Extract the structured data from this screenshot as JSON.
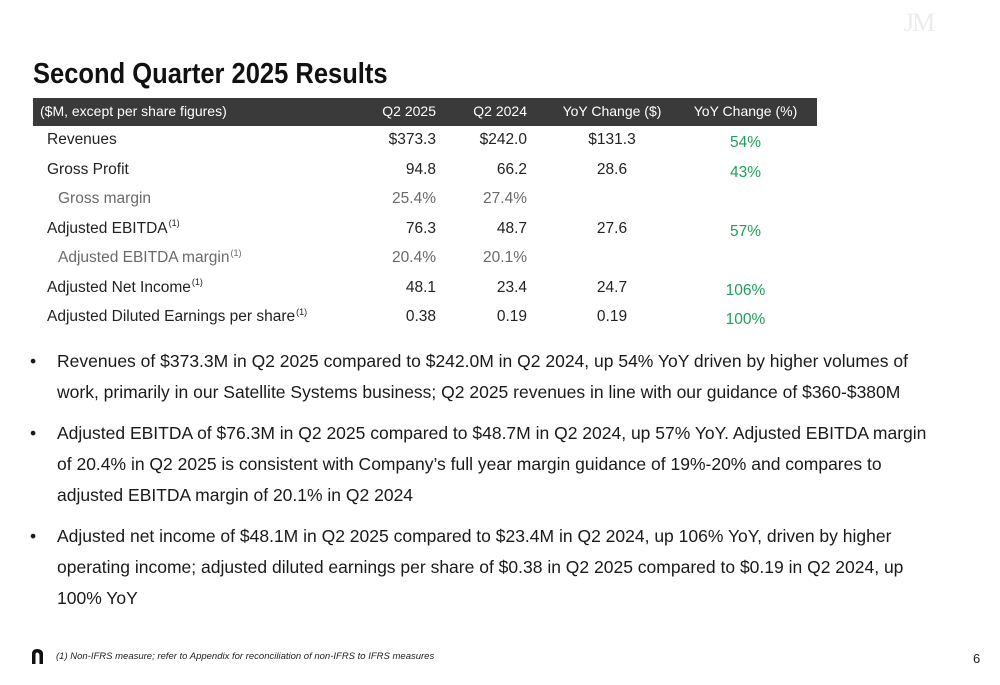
{
  "watermark": "JM",
  "title": "Second Quarter 2025 Results",
  "table": {
    "header": {
      "units": "($M, except per share figures)",
      "col_q2_2025": "Q2 2025",
      "col_q2_2024": "Q2 2024",
      "col_yoy_dollar": "YoY Change ($)",
      "col_yoy_pct": "YoY Change (%)"
    },
    "rows": [
      {
        "label": "Revenues",
        "footnote": "",
        "q2_2025": "$373.3",
        "q2_2024": "$242.0",
        "yoy_dollar": "$131.3",
        "yoy_pct": "54%",
        "style": "main"
      },
      {
        "label": "Gross Profit",
        "footnote": "",
        "q2_2025": "94.8",
        "q2_2024": "66.2",
        "yoy_dollar": "28.6",
        "yoy_pct": "43%",
        "style": "main"
      },
      {
        "label": "Gross margin",
        "footnote": "",
        "q2_2025": "25.4%",
        "q2_2024": "27.4%",
        "yoy_dollar": "",
        "yoy_pct": "",
        "style": "sub"
      },
      {
        "label": "Adjusted EBITDA",
        "footnote": "(1)",
        "q2_2025": "76.3",
        "q2_2024": "48.7",
        "yoy_dollar": "27.6",
        "yoy_pct": "57%",
        "style": "main"
      },
      {
        "label": "Adjusted EBITDA margin",
        "footnote": "(1)",
        "q2_2025": "20.4%",
        "q2_2024": "20.1%",
        "yoy_dollar": "",
        "yoy_pct": "",
        "style": "sub"
      },
      {
        "label": "Adjusted Net Income",
        "footnote": "(1)",
        "q2_2025": "48.1",
        "q2_2024": "23.4",
        "yoy_dollar": "24.7",
        "yoy_pct": "106%",
        "style": "main"
      },
      {
        "label": "Adjusted Diluted Earnings per share",
        "footnote": "(1)",
        "q2_2025": "0.38",
        "q2_2024": "0.19",
        "yoy_dollar": "0.19",
        "yoy_pct": "100%",
        "style": "main"
      }
    ]
  },
  "bullets": [
    "Revenues of $373.3M in Q2 2025 compared to $242.0M in Q2 2024, up 54% YoY driven by higher volumes of work, primarily in our Satellite Systems business; Q2 2025 revenues in line with our guidance of $360-$380M",
    "Adjusted EBITDA of $76.3M in Q2 2025 compared to $48.7M in Q2 2024, up 57% YoY. Adjusted EBITDA margin of 20.4% in Q2 2025 is consistent with Company’s full year margin guidance of 19%-20% and compares to adjusted EBITDA margin of 20.1% in Q2 2024",
    "Adjusted net income of $48.1M in Q2 2025 compared to $23.4M in Q2 2024, up 106% YoY, driven by higher operating income; adjusted diluted earnings per share of $0.38 in Q2 2025 compared to $0.19 in Q2 2024, up 100% YoY"
  ],
  "bullet_char": "•",
  "footnote": "(1) Non-IFRS measure; refer to Appendix for reconciliation of non-IFRS to IFRS measures",
  "page_number": "6",
  "colors": {
    "header_bg": "#3a3a3a",
    "positive": "#1fa05a",
    "sub_row_text": "#6a6a6a"
  },
  "icons": {
    "logo": "company-logo-mark"
  }
}
